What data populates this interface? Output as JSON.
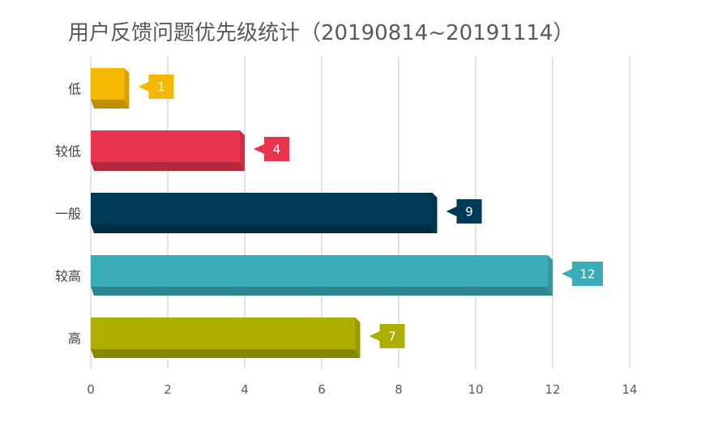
{
  "chart_data": {
    "type": "bar",
    "orientation": "horizontal",
    "title": "用户反馈问题优先级统计（20190814~20191114）",
    "categories": [
      "低",
      "较低",
      "一般",
      "较高",
      "高"
    ],
    "values": [
      1,
      4,
      9,
      12,
      7
    ],
    "colors": [
      "#F5B800",
      "#E8344F",
      "#003A57",
      "#3AADB8",
      "#ACAF00"
    ],
    "xlim": [
      0,
      14
    ],
    "xticks": [
      0,
      2,
      4,
      6,
      8,
      10,
      12,
      14
    ],
    "grid": true,
    "legend": "none"
  }
}
